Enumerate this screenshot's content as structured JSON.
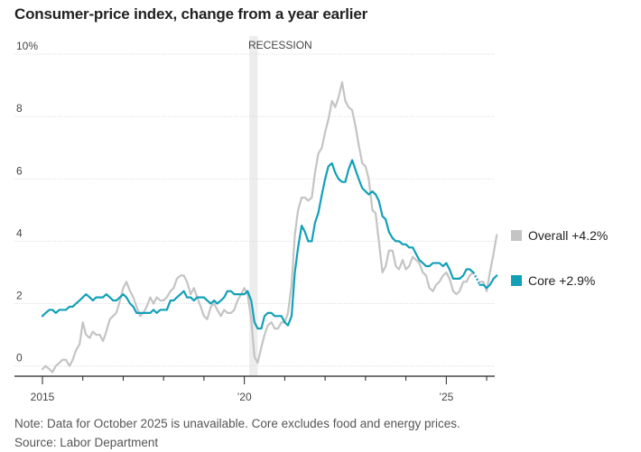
{
  "chart_data": {
    "type": "line",
    "title": "Consumer-price index, change from a year earlier",
    "xlabel": "",
    "ylabel": "",
    "x_range": [
      2015.0,
      2026.2
    ],
    "ylim": [
      -0.3,
      10
    ],
    "y_ticks": [
      {
        "value": 0,
        "label": "0"
      },
      {
        "value": 2,
        "label": "2"
      },
      {
        "value": 4,
        "label": "4"
      },
      {
        "value": 6,
        "label": "6"
      },
      {
        "value": 8,
        "label": "8"
      },
      {
        "value": 10,
        "label": "10%"
      }
    ],
    "x_tick_labels": [
      {
        "x": 2015,
        "label": "2015"
      },
      {
        "x": 2020,
        "label": "’20"
      },
      {
        "x": 2025,
        "label": "’25"
      }
    ],
    "grid": "horizontal",
    "recession": {
      "label": "RECESSION",
      "start": 2020.12,
      "end": 2020.33
    },
    "gap_note": "Data for October 2025 is unavailable",
    "series": [
      {
        "name": "Overall",
        "legend": "Overall +4.2%",
        "color": "#c4c4c4",
        "points": [
          [
            2015.0,
            -0.1
          ],
          [
            2015.08,
            0.0
          ],
          [
            2015.17,
            -0.1
          ],
          [
            2015.25,
            -0.2
          ],
          [
            2015.33,
            0.0
          ],
          [
            2015.42,
            0.1
          ],
          [
            2015.5,
            0.2
          ],
          [
            2015.58,
            0.2
          ],
          [
            2015.67,
            0.0
          ],
          [
            2015.75,
            0.2
          ],
          [
            2015.83,
            0.5
          ],
          [
            2015.92,
            0.7
          ],
          [
            2016.0,
            1.4
          ],
          [
            2016.08,
            1.0
          ],
          [
            2016.17,
            0.9
          ],
          [
            2016.25,
            1.1
          ],
          [
            2016.33,
            1.0
          ],
          [
            2016.42,
            1.0
          ],
          [
            2016.5,
            0.8
          ],
          [
            2016.58,
            1.1
          ],
          [
            2016.67,
            1.5
          ],
          [
            2016.75,
            1.6
          ],
          [
            2016.83,
            1.7
          ],
          [
            2016.92,
            2.1
          ],
          [
            2017.0,
            2.5
          ],
          [
            2017.08,
            2.7
          ],
          [
            2017.17,
            2.4
          ],
          [
            2017.25,
            2.2
          ],
          [
            2017.33,
            1.9
          ],
          [
            2017.42,
            1.6
          ],
          [
            2017.5,
            1.7
          ],
          [
            2017.58,
            1.9
          ],
          [
            2017.67,
            2.2
          ],
          [
            2017.75,
            2.0
          ],
          [
            2017.83,
            2.2
          ],
          [
            2017.92,
            2.1
          ],
          [
            2018.0,
            2.1
          ],
          [
            2018.08,
            2.2
          ],
          [
            2018.17,
            2.4
          ],
          [
            2018.25,
            2.5
          ],
          [
            2018.33,
            2.8
          ],
          [
            2018.42,
            2.9
          ],
          [
            2018.5,
            2.9
          ],
          [
            2018.58,
            2.7
          ],
          [
            2018.67,
            2.3
          ],
          [
            2018.75,
            2.5
          ],
          [
            2018.83,
            2.2
          ],
          [
            2018.92,
            1.9
          ],
          [
            2019.0,
            1.6
          ],
          [
            2019.08,
            1.5
          ],
          [
            2019.17,
            1.9
          ],
          [
            2019.25,
            2.0
          ],
          [
            2019.33,
            1.8
          ],
          [
            2019.42,
            1.6
          ],
          [
            2019.5,
            1.8
          ],
          [
            2019.58,
            1.7
          ],
          [
            2019.67,
            1.7
          ],
          [
            2019.75,
            1.8
          ],
          [
            2019.83,
            2.1
          ],
          [
            2019.92,
            2.3
          ],
          [
            2020.0,
            2.5
          ],
          [
            2020.08,
            2.3
          ],
          [
            2020.17,
            1.5
          ],
          [
            2020.25,
            0.3
          ],
          [
            2020.33,
            0.1
          ],
          [
            2020.42,
            0.6
          ],
          [
            2020.5,
            1.0
          ],
          [
            2020.58,
            1.3
          ],
          [
            2020.67,
            1.4
          ],
          [
            2020.75,
            1.2
          ],
          [
            2020.83,
            1.2
          ],
          [
            2020.92,
            1.4
          ],
          [
            2021.0,
            1.4
          ],
          [
            2021.08,
            1.7
          ],
          [
            2021.17,
            2.6
          ],
          [
            2021.25,
            4.2
          ],
          [
            2021.33,
            5.0
          ],
          [
            2021.42,
            5.4
          ],
          [
            2021.5,
            5.4
          ],
          [
            2021.58,
            5.3
          ],
          [
            2021.67,
            5.4
          ],
          [
            2021.75,
            6.2
          ],
          [
            2021.83,
            6.8
          ],
          [
            2021.92,
            7.0
          ],
          [
            2022.0,
            7.5
          ],
          [
            2022.08,
            7.9
          ],
          [
            2022.17,
            8.5
          ],
          [
            2022.25,
            8.3
          ],
          [
            2022.33,
            8.6
          ],
          [
            2022.42,
            9.1
          ],
          [
            2022.5,
            8.5
          ],
          [
            2022.58,
            8.3
          ],
          [
            2022.67,
            8.2
          ],
          [
            2022.75,
            7.7
          ],
          [
            2022.83,
            7.1
          ],
          [
            2022.92,
            6.5
          ],
          [
            2023.0,
            6.4
          ],
          [
            2023.08,
            6.0
          ],
          [
            2023.17,
            5.0
          ],
          [
            2023.25,
            4.9
          ],
          [
            2023.33,
            4.0
          ],
          [
            2023.42,
            3.0
          ],
          [
            2023.5,
            3.2
          ],
          [
            2023.58,
            3.7
          ],
          [
            2023.67,
            3.7
          ],
          [
            2023.75,
            3.2
          ],
          [
            2023.83,
            3.1
          ],
          [
            2023.92,
            3.4
          ],
          [
            2024.0,
            3.1
          ],
          [
            2024.08,
            3.2
          ],
          [
            2024.17,
            3.5
          ],
          [
            2024.25,
            3.4
          ],
          [
            2024.33,
            3.3
          ],
          [
            2024.42,
            3.0
          ],
          [
            2024.5,
            2.9
          ],
          [
            2024.58,
            2.5
          ],
          [
            2024.67,
            2.4
          ],
          [
            2024.75,
            2.6
          ],
          [
            2024.83,
            2.7
          ],
          [
            2024.92,
            2.9
          ],
          [
            2025.0,
            3.0
          ],
          [
            2025.08,
            2.8
          ],
          [
            2025.17,
            2.4
          ],
          [
            2025.25,
            2.3
          ],
          [
            2025.33,
            2.4
          ],
          [
            2025.42,
            2.7
          ],
          [
            2025.5,
            2.7
          ],
          [
            2025.58,
            2.9
          ],
          [
            2025.67,
            3.0
          ],
          [
            2025.75,
            null
          ],
          [
            2025.83,
            2.7
          ],
          [
            2025.92,
            2.7
          ],
          [
            2026.0,
            2.4
          ],
          [
            2026.08,
            3.0
          ],
          [
            2026.17,
            3.6
          ],
          [
            2026.25,
            4.2
          ]
        ]
      },
      {
        "name": "Core",
        "legend": "Core +2.9%",
        "color": "#12a0b8",
        "points": [
          [
            2015.0,
            1.6
          ],
          [
            2015.08,
            1.7
          ],
          [
            2015.17,
            1.8
          ],
          [
            2015.25,
            1.8
          ],
          [
            2015.33,
            1.7
          ],
          [
            2015.42,
            1.8
          ],
          [
            2015.5,
            1.8
          ],
          [
            2015.58,
            1.8
          ],
          [
            2015.67,
            1.9
          ],
          [
            2015.75,
            1.9
          ],
          [
            2015.83,
            2.0
          ],
          [
            2015.92,
            2.1
          ],
          [
            2016.0,
            2.2
          ],
          [
            2016.08,
            2.3
          ],
          [
            2016.17,
            2.2
          ],
          [
            2016.25,
            2.1
          ],
          [
            2016.33,
            2.2
          ],
          [
            2016.42,
            2.2
          ],
          [
            2016.5,
            2.2
          ],
          [
            2016.58,
            2.3
          ],
          [
            2016.67,
            2.2
          ],
          [
            2016.75,
            2.1
          ],
          [
            2016.83,
            2.1
          ],
          [
            2016.92,
            2.2
          ],
          [
            2017.0,
            2.3
          ],
          [
            2017.08,
            2.2
          ],
          [
            2017.17,
            2.0
          ],
          [
            2017.25,
            1.9
          ],
          [
            2017.33,
            1.7
          ],
          [
            2017.42,
            1.7
          ],
          [
            2017.5,
            1.7
          ],
          [
            2017.58,
            1.7
          ],
          [
            2017.67,
            1.7
          ],
          [
            2017.75,
            1.8
          ],
          [
            2017.83,
            1.7
          ],
          [
            2017.92,
            1.8
          ],
          [
            2018.0,
            1.8
          ],
          [
            2018.08,
            1.8
          ],
          [
            2018.17,
            2.1
          ],
          [
            2018.25,
            2.1
          ],
          [
            2018.33,
            2.2
          ],
          [
            2018.42,
            2.3
          ],
          [
            2018.5,
            2.4
          ],
          [
            2018.58,
            2.2
          ],
          [
            2018.67,
            2.2
          ],
          [
            2018.75,
            2.1
          ],
          [
            2018.83,
            2.2
          ],
          [
            2018.92,
            2.2
          ],
          [
            2019.0,
            2.2
          ],
          [
            2019.08,
            2.1
          ],
          [
            2019.17,
            2.0
          ],
          [
            2019.25,
            2.1
          ],
          [
            2019.33,
            2.0
          ],
          [
            2019.42,
            2.1
          ],
          [
            2019.5,
            2.2
          ],
          [
            2019.58,
            2.4
          ],
          [
            2019.67,
            2.4
          ],
          [
            2019.75,
            2.3
          ],
          [
            2019.83,
            2.3
          ],
          [
            2019.92,
            2.3
          ],
          [
            2020.0,
            2.3
          ],
          [
            2020.08,
            2.4
          ],
          [
            2020.17,
            2.1
          ],
          [
            2020.25,
            1.4
          ],
          [
            2020.33,
            1.2
          ],
          [
            2020.42,
            1.2
          ],
          [
            2020.5,
            1.6
          ],
          [
            2020.58,
            1.7
          ],
          [
            2020.67,
            1.7
          ],
          [
            2020.75,
            1.6
          ],
          [
            2020.83,
            1.6
          ],
          [
            2020.92,
            1.6
          ],
          [
            2021.0,
            1.4
          ],
          [
            2021.08,
            1.3
          ],
          [
            2021.17,
            1.6
          ],
          [
            2021.25,
            3.0
          ],
          [
            2021.33,
            3.8
          ],
          [
            2021.42,
            4.5
          ],
          [
            2021.5,
            4.3
          ],
          [
            2021.58,
            4.0
          ],
          [
            2021.67,
            4.0
          ],
          [
            2021.75,
            4.6
          ],
          [
            2021.83,
            4.9
          ],
          [
            2021.92,
            5.5
          ],
          [
            2022.0,
            6.0
          ],
          [
            2022.08,
            6.4
          ],
          [
            2022.17,
            6.5
          ],
          [
            2022.25,
            6.2
          ],
          [
            2022.33,
            6.0
          ],
          [
            2022.42,
            5.9
          ],
          [
            2022.5,
            5.9
          ],
          [
            2022.58,
            6.3
          ],
          [
            2022.67,
            6.6
          ],
          [
            2022.75,
            6.3
          ],
          [
            2022.83,
            6.0
          ],
          [
            2022.92,
            5.7
          ],
          [
            2023.0,
            5.6
          ],
          [
            2023.08,
            5.5
          ],
          [
            2023.17,
            5.6
          ],
          [
            2023.25,
            5.5
          ],
          [
            2023.33,
            5.3
          ],
          [
            2023.42,
            4.8
          ],
          [
            2023.5,
            4.7
          ],
          [
            2023.58,
            4.3
          ],
          [
            2023.67,
            4.1
          ],
          [
            2023.75,
            4.0
          ],
          [
            2023.83,
            4.0
          ],
          [
            2023.92,
            3.9
          ],
          [
            2024.0,
            3.9
          ],
          [
            2024.08,
            3.8
          ],
          [
            2024.17,
            3.8
          ],
          [
            2024.25,
            3.6
          ],
          [
            2024.33,
            3.4
          ],
          [
            2024.42,
            3.3
          ],
          [
            2024.5,
            3.2
          ],
          [
            2024.58,
            3.2
          ],
          [
            2024.67,
            3.3
          ],
          [
            2024.75,
            3.3
          ],
          [
            2024.83,
            3.3
          ],
          [
            2024.92,
            3.2
          ],
          [
            2025.0,
            3.3
          ],
          [
            2025.08,
            3.1
          ],
          [
            2025.17,
            2.8
          ],
          [
            2025.25,
            2.8
          ],
          [
            2025.33,
            2.8
          ],
          [
            2025.42,
            2.9
          ],
          [
            2025.5,
            3.1
          ],
          [
            2025.58,
            3.1
          ],
          [
            2025.67,
            3.0
          ],
          [
            2025.75,
            null
          ],
          [
            2025.83,
            2.6
          ],
          [
            2025.92,
            2.6
          ],
          [
            2026.0,
            2.5
          ],
          [
            2026.08,
            2.6
          ],
          [
            2026.17,
            2.8
          ],
          [
            2026.25,
            2.9
          ]
        ]
      }
    ]
  },
  "footnote": "Note: Data for October 2025 is unavailable. Core excludes food and energy prices.",
  "source": "Source: Labor Department"
}
